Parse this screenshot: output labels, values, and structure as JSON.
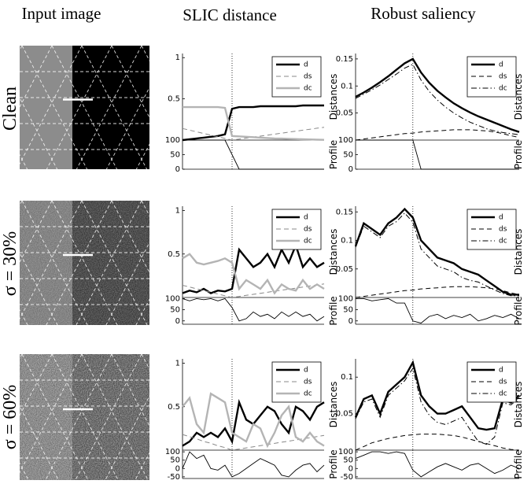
{
  "figure": {
    "columns": [
      "Input image",
      "SLIC distance",
      "Robust saliency"
    ],
    "rows": [
      "Clean",
      "σ = 30%",
      "σ = 60%"
    ]
  },
  "chart_data": [
    {
      "type": "line",
      "ylabel": "Distances",
      "x": [
        0,
        1,
        2,
        3,
        4,
        5,
        6,
        7,
        8,
        9,
        10,
        11,
        12,
        13,
        14,
        15,
        16,
        17,
        18,
        19,
        20
      ],
      "xlim": [
        0,
        20
      ],
      "ylim": [
        0,
        1.05
      ],
      "yticks": [
        0.5,
        1
      ],
      "vline": 7,
      "legend": "upper right",
      "series": [
        {
          "name": "d",
          "color": "#000000",
          "style": "solid",
          "values": [
            0,
            0.01,
            0.02,
            0.03,
            0.04,
            0.05,
            0.07,
            0.38,
            0.4,
            0.4,
            0.4,
            0.41,
            0.41,
            0.41,
            0.41,
            0.41,
            0.41,
            0.42,
            0.42,
            0.42,
            0.42
          ]
        },
        {
          "name": "ds",
          "color": "#888888",
          "style": "dashed",
          "values": [
            0.14,
            0.12,
            0.1,
            0.08,
            0.06,
            0.04,
            0.02,
            0,
            0.012,
            0.024,
            0.036,
            0.048,
            0.06,
            0.072,
            0.084,
            0.096,
            0.108,
            0.12,
            0.132,
            0.144,
            0.156
          ]
        },
        {
          "name": "dc",
          "color": "#b4b4b4",
          "style": "solid",
          "values": [
            0.4,
            0.4,
            0.4,
            0.4,
            0.4,
            0.4,
            0.39,
            0.05,
            0.045,
            0.04,
            0.035,
            0.03,
            0.025,
            0.02,
            0.018,
            0.015,
            0.012,
            0.01,
            0.008,
            0.005,
            0.003
          ]
        }
      ]
    },
    {
      "type": "line",
      "ylabel": "Profile",
      "x": [
        0,
        1,
        2,
        3,
        4,
        5,
        6,
        7,
        8,
        9,
        10,
        11,
        12,
        13,
        14,
        15,
        16,
        17,
        18,
        19,
        20
      ],
      "xlim": [
        0,
        20
      ],
      "ylim": [
        0,
        100
      ],
      "yticks": [
        0,
        50,
        100
      ],
      "vline": 7,
      "series": [
        {
          "color": "#000000",
          "style": "thin",
          "values": [
            100,
            100,
            100,
            100,
            100,
            100,
            100,
            50,
            0,
            0,
            0,
            0,
            0,
            0,
            0,
            0,
            0,
            0,
            0,
            0,
            0
          ]
        }
      ]
    },
    {
      "type": "line",
      "ylabel": "Distances",
      "x": [
        0,
        1,
        2,
        3,
        4,
        5,
        6,
        7,
        8,
        9,
        10,
        11,
        12,
        13,
        14,
        15,
        16,
        17,
        18,
        19,
        20
      ],
      "xlim": [
        0,
        20
      ],
      "ylim": [
        0,
        0.16
      ],
      "yticks": [
        0.05,
        0.1,
        0.15
      ],
      "vline": 7,
      "legend": "upper right",
      "series": [
        {
          "name": "d",
          "color": "#000000",
          "style": "solid",
          "values": [
            0.08,
            0.088,
            0.097,
            0.107,
            0.118,
            0.13,
            0.142,
            0.15,
            0.125,
            0.106,
            0.091,
            0.079,
            0.068,
            0.059,
            0.051,
            0.044,
            0.038,
            0.032,
            0.026,
            0.02,
            0.015
          ]
        },
        {
          "name": "ds",
          "color": "#000000",
          "style": "dashed",
          "values": [
            0,
            0.002,
            0.004,
            0.006,
            0.008,
            0.01,
            0.012,
            0.013,
            0.015,
            0.016,
            0.017,
            0.018,
            0.019,
            0.019,
            0.019,
            0.018,
            0.017,
            0.015,
            0.012,
            0.008,
            0.005
          ]
        },
        {
          "name": "dc",
          "color": "#000000",
          "style": "dashdot",
          "values": [
            0.077,
            0.085,
            0.093,
            0.102,
            0.112,
            0.122,
            0.133,
            0.14,
            0.111,
            0.09,
            0.074,
            0.061,
            0.05,
            0.041,
            0.033,
            0.027,
            0.021,
            0.017,
            0.014,
            0.012,
            0.01
          ]
        }
      ]
    },
    {
      "type": "line",
      "ylabel": "Profile",
      "x": [
        0,
        1,
        2,
        3,
        4,
        5,
        6,
        7,
        8,
        9,
        10,
        11,
        12,
        13,
        14,
        15,
        16,
        17,
        18,
        19,
        20
      ],
      "xlim": [
        0,
        20
      ],
      "ylim": [
        0,
        100
      ],
      "yticks": [
        0,
        50,
        100
      ],
      "vline": 7,
      "series": [
        {
          "color": "#000000",
          "style": "thin",
          "values": [
            100,
            100,
            100,
            100,
            100,
            100,
            100,
            100,
            0,
            0,
            0,
            0,
            0,
            0,
            0,
            0,
            0,
            0,
            0,
            0,
            0
          ]
        }
      ]
    },
    {
      "type": "line",
      "ylabel": "Distances",
      "x": [
        0,
        1,
        2,
        3,
        4,
        5,
        6,
        7,
        8,
        9,
        10,
        11,
        12,
        13,
        14,
        15,
        16,
        17,
        18,
        19,
        20
      ],
      "xlim": [
        0,
        20
      ],
      "ylim": [
        0,
        1.05
      ],
      "yticks": [
        0.5,
        1
      ],
      "vline": 7,
      "legend": "upper right",
      "series": [
        {
          "name": "d",
          "color": "#000000",
          "style": "solid",
          "values": [
            0.05,
            0.08,
            0.06,
            0.1,
            0.05,
            0.08,
            0.07,
            0.1,
            0.55,
            0.45,
            0.35,
            0.4,
            0.5,
            0.35,
            0.55,
            0.4,
            0.6,
            0.35,
            0.45,
            0.35,
            0.4
          ]
        },
        {
          "name": "ds",
          "color": "#888888",
          "style": "dashed",
          "values": [
            0.14,
            0.12,
            0.1,
            0.08,
            0.06,
            0.04,
            0.02,
            0,
            0.012,
            0.024,
            0.036,
            0.048,
            0.06,
            0.072,
            0.084,
            0.096,
            0.108,
            0.12,
            0.132,
            0.144,
            0.156
          ]
        },
        {
          "name": "dc",
          "color": "#b4b4b4",
          "style": "solid",
          "values": [
            0.45,
            0.5,
            0.4,
            0.38,
            0.4,
            0.42,
            0.45,
            0.4,
            0.1,
            0.2,
            0.15,
            0.1,
            0.2,
            0.05,
            0.15,
            0.1,
            0.08,
            0.2,
            0.1,
            0.15,
            0.1
          ]
        }
      ]
    },
    {
      "type": "line",
      "ylabel": "Profile",
      "x": [
        0,
        1,
        2,
        3,
        4,
        5,
        6,
        7,
        8,
        9,
        10,
        11,
        12,
        13,
        14,
        15,
        16,
        17,
        18,
        19,
        20
      ],
      "xlim": [
        0,
        20
      ],
      "ylim": [
        -15,
        105
      ],
      "yticks": [
        0,
        50,
        100
      ],
      "vline": 7,
      "series": [
        {
          "color": "#000000",
          "style": "thin",
          "values": [
            100,
            90,
            100,
            95,
            100,
            90,
            100,
            60,
            0,
            10,
            40,
            20,
            30,
            10,
            40,
            20,
            40,
            20,
            30,
            0,
            20
          ]
        }
      ]
    },
    {
      "type": "line",
      "ylabel": "Distances",
      "x": [
        0,
        1,
        2,
        3,
        4,
        5,
        6,
        7,
        8,
        9,
        10,
        11,
        12,
        13,
        14,
        15,
        16,
        17,
        18,
        19,
        20
      ],
      "xlim": [
        0,
        20
      ],
      "ylim": [
        0,
        0.16
      ],
      "yticks": [
        0.05,
        0.1,
        0.15
      ],
      "vline": 7,
      "legend": "upper right",
      "series": [
        {
          "name": "d",
          "color": "#000000",
          "style": "solid",
          "values": [
            0.09,
            0.13,
            0.12,
            0.11,
            0.13,
            0.14,
            0.155,
            0.14,
            0.1,
            0.085,
            0.07,
            0.065,
            0.06,
            0.05,
            0.045,
            0.04,
            0.03,
            0.02,
            0.01,
            0.005,
            0.005
          ]
        },
        {
          "name": "ds",
          "color": "#000000",
          "style": "dashed",
          "values": [
            0,
            0.002,
            0.004,
            0.006,
            0.008,
            0.01,
            0.012,
            0.013,
            0.015,
            0.016,
            0.017,
            0.018,
            0.019,
            0.019,
            0.019,
            0.018,
            0.017,
            0.015,
            0.012,
            0.008,
            0.005
          ]
        },
        {
          "name": "dc",
          "color": "#000000",
          "style": "dashdot",
          "values": [
            0.088,
            0.125,
            0.115,
            0.105,
            0.125,
            0.133,
            0.148,
            0.132,
            0.085,
            0.07,
            0.055,
            0.05,
            0.045,
            0.035,
            0.03,
            0.027,
            0.02,
            0.013,
            0.007,
            0.003,
            0.003
          ]
        }
      ]
    },
    {
      "type": "line",
      "ylabel": "Profile",
      "x": [
        0,
        1,
        2,
        3,
        4,
        5,
        6,
        7,
        8,
        9,
        10,
        11,
        12,
        13,
        14,
        15,
        16,
        17,
        18,
        19,
        20
      ],
      "xlim": [
        0,
        20
      ],
      "ylim": [
        -15,
        105
      ],
      "yticks": [
        0,
        50,
        100
      ],
      "vline": 7,
      "series": [
        {
          "color": "#000000",
          "style": "thin",
          "values": [
            100,
            100,
            90,
            95,
            100,
            80,
            80,
            0,
            -10,
            20,
            30,
            10,
            25,
            15,
            30,
            0,
            10,
            25,
            15,
            30,
            10
          ]
        }
      ]
    },
    {
      "type": "line",
      "ylabel": "Distances",
      "x": [
        0,
        1,
        2,
        3,
        4,
        5,
        6,
        7,
        8,
        9,
        10,
        11,
        12,
        13,
        14,
        15,
        16,
        17,
        18,
        19,
        20
      ],
      "xlim": [
        0,
        20
      ],
      "ylim": [
        0,
        1.05
      ],
      "yticks": [
        0.5,
        1
      ],
      "vline": 7,
      "legend": "upper right",
      "series": [
        {
          "name": "d",
          "color": "#000000",
          "style": "solid",
          "values": [
            0.05,
            0.1,
            0.2,
            0.15,
            0.2,
            0.15,
            0.25,
            0.1,
            0.55,
            0.35,
            0.3,
            0.4,
            0.5,
            0.45,
            0.3,
            0.2,
            0.5,
            0.45,
            0.35,
            0.5,
            0.55
          ]
        },
        {
          "name": "ds",
          "color": "#888888",
          "style": "dashed",
          "values": [
            0.18,
            0.155,
            0.13,
            0.1,
            0.08,
            0.05,
            0.03,
            0,
            0.013,
            0.026,
            0.039,
            0.052,
            0.065,
            0.078,
            0.091,
            0.104,
            0.117,
            0.13,
            0.143,
            0.156,
            0.17
          ]
        },
        {
          "name": "dc",
          "color": "#b4b4b4",
          "style": "solid",
          "values": [
            0.5,
            0.6,
            0.3,
            0.2,
            0.65,
            0.6,
            0.55,
            0.2,
            0.15,
            0.1,
            0.3,
            0.25,
            0.05,
            0.2,
            0.4,
            0.5,
            0.15,
            0.1,
            0.2,
            0.1,
            0.05
          ]
        }
      ]
    },
    {
      "type": "line",
      "ylabel": "Profile",
      "x": [
        0,
        1,
        2,
        3,
        4,
        5,
        6,
        7,
        8,
        9,
        10,
        11,
        12,
        13,
        14,
        15,
        16,
        17,
        18,
        19,
        20
      ],
      "xlim": [
        0,
        20
      ],
      "ylim": [
        -60,
        110
      ],
      "yticks": [
        -50,
        0,
        50,
        100
      ],
      "vline": 7,
      "series": [
        {
          "color": "#000000",
          "style": "thin",
          "values": [
            0,
            100,
            60,
            80,
            0,
            -10,
            20,
            -50,
            -30,
            0,
            30,
            60,
            40,
            20,
            -40,
            -50,
            -10,
            20,
            30,
            -20,
            20
          ]
        }
      ]
    },
    {
      "type": "line",
      "ylabel": "Distances",
      "x": [
        0,
        1,
        2,
        3,
        4,
        5,
        6,
        7,
        8,
        9,
        10,
        11,
        12,
        13,
        14,
        15,
        16,
        17,
        18,
        19,
        20
      ],
      "xlim": [
        0,
        20
      ],
      "ylim": [
        0,
        0.125
      ],
      "yticks": [
        0.05,
        0.1
      ],
      "vline": 7,
      "legend": "upper right",
      "series": [
        {
          "name": "d",
          "color": "#000000",
          "style": "solid",
          "values": [
            0.045,
            0.07,
            0.075,
            0.05,
            0.08,
            0.09,
            0.1,
            0.12,
            0.075,
            0.06,
            0.05,
            0.05,
            0.055,
            0.06,
            0.045,
            0.03,
            0.028,
            0.03,
            0.07,
            0.065,
            0.075
          ]
        },
        {
          "name": "ds",
          "color": "#000000",
          "style": "dashed",
          "values": [
            0,
            0.005,
            0.01,
            0.013,
            0.016,
            0.018,
            0.02,
            0.021,
            0.022,
            0.022,
            0.022,
            0.021,
            0.02,
            0.018,
            0.015,
            0.012,
            0.009,
            0.006,
            0.003,
            0.001,
            0
          ]
        },
        {
          "name": "dc",
          "color": "#000000",
          "style": "dashdot",
          "values": [
            0.043,
            0.066,
            0.07,
            0.045,
            0.075,
            0.085,
            0.095,
            0.112,
            0.066,
            0.048,
            0.038,
            0.035,
            0.04,
            0.045,
            0.028,
            0.012,
            0.008,
            0.018,
            0.065,
            0.062,
            0.072
          ]
        }
      ]
    },
    {
      "type": "line",
      "ylabel": "Profile",
      "x": [
        0,
        1,
        2,
        3,
        4,
        5,
        6,
        7,
        8,
        9,
        10,
        11,
        12,
        13,
        14,
        15,
        16,
        17,
        18,
        19,
        20
      ],
      "xlim": [
        0,
        20
      ],
      "ylim": [
        -60,
        110
      ],
      "yticks": [
        -50,
        0,
        50,
        100
      ],
      "vline": 7,
      "series": [
        {
          "color": "#000000",
          "style": "thin",
          "values": [
            60,
            80,
            100,
            100,
            90,
            100,
            90,
            -10,
            -50,
            -20,
            10,
            30,
            10,
            -10,
            20,
            30,
            0,
            -30,
            -10,
            20,
            0
          ]
        }
      ]
    }
  ]
}
